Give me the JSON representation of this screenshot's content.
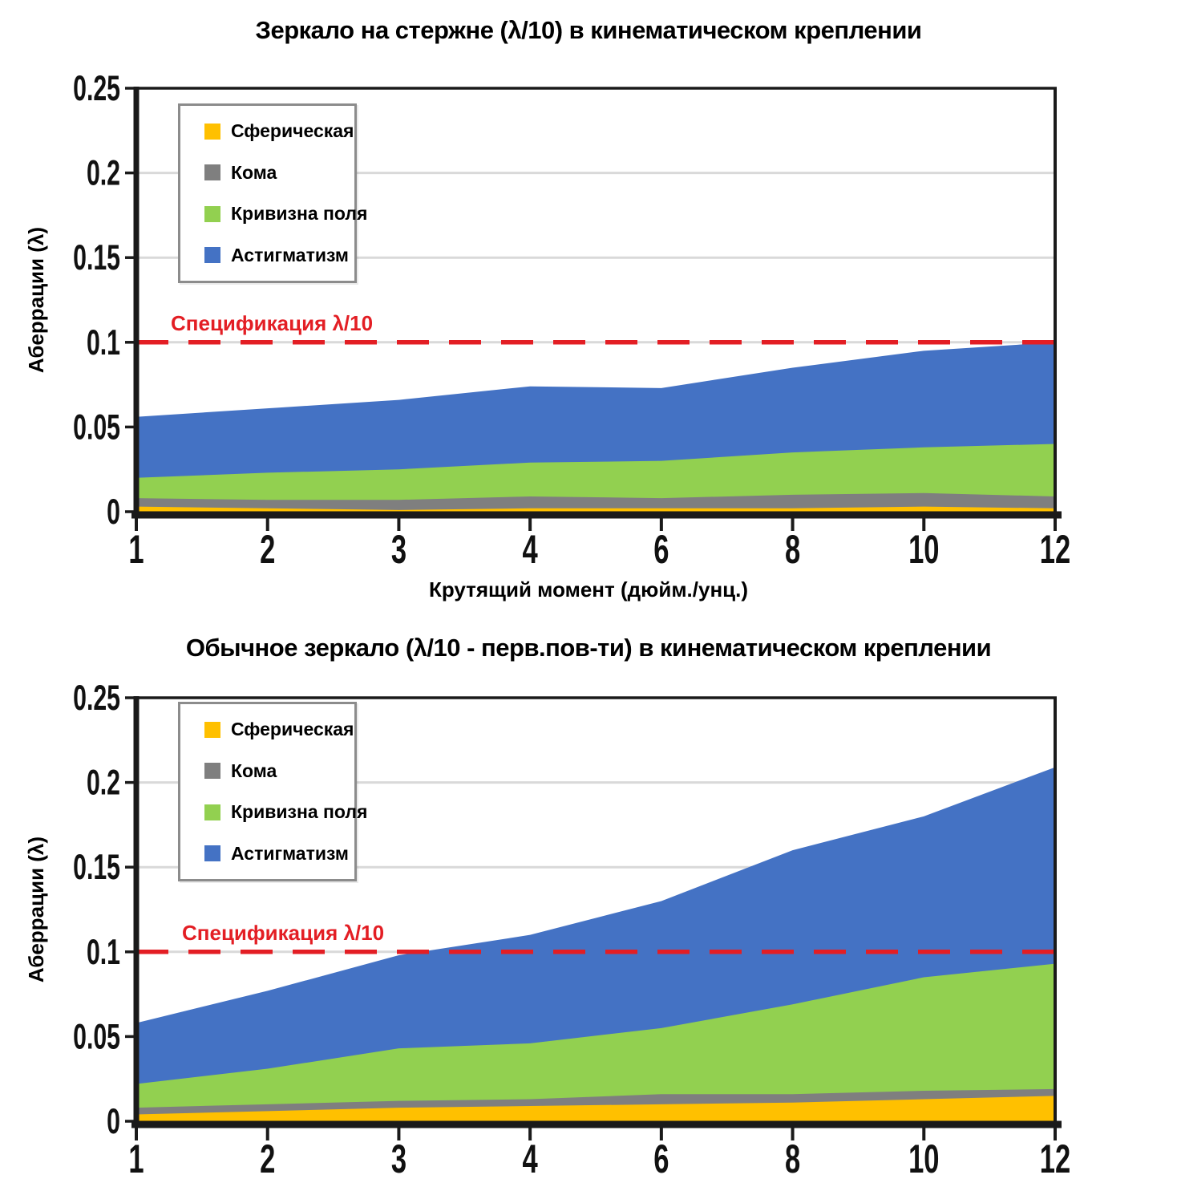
{
  "colors": {
    "background": "#FFFFFF",
    "gridline": "#D9D9D9",
    "axis": "#1A1A1A",
    "text": "#000000",
    "spec_line": "#E31E24"
  },
  "chart_data": [
    {
      "type": "area",
      "stacked": true,
      "title": "Зеркало на стержне (λ/10) в кинематическом креплении",
      "xlabel": "Крутящий момент (дюйм./унц.)",
      "ylabel": "Аберрации (λ)",
      "x": [
        1,
        2,
        3,
        4,
        6,
        8,
        10,
        12
      ],
      "x_tick_labels": [
        "1",
        "2",
        "3",
        "4",
        "6",
        "8",
        "10",
        "12"
      ],
      "y_ticks": [
        {
          "value": 0,
          "label": "0"
        },
        {
          "value": 0.05,
          "label": "0.05"
        },
        {
          "value": 0.1,
          "label": "0.1"
        },
        {
          "value": 0.15,
          "label": "0.15"
        },
        {
          "value": 0.2,
          "label": "0.2"
        },
        {
          "value": 0.25,
          "label": "0.25"
        }
      ],
      "ylim": [
        0,
        0.25
      ],
      "grid": true,
      "legend_position": "upper-left-inside",
      "series": [
        {
          "name": "Сферическая",
          "color": "#FFC000",
          "values": [
            0.003,
            0.002,
            0.001,
            0.002,
            0.002,
            0.002,
            0.003,
            0.002
          ]
        },
        {
          "name": "Кома",
          "color": "#7F7F7F",
          "values": [
            0.005,
            0.005,
            0.006,
            0.007,
            0.006,
            0.008,
            0.008,
            0.007
          ]
        },
        {
          "name": "Кривизна поля",
          "color": "#92D050",
          "values": [
            0.012,
            0.016,
            0.018,
            0.02,
            0.022,
            0.025,
            0.027,
            0.031
          ]
        },
        {
          "name": "Астигматизм",
          "color": "#4472C4",
          "values": [
            0.036,
            0.038,
            0.041,
            0.045,
            0.043,
            0.05,
            0.057,
            0.06
          ]
        }
      ],
      "annotation": {
        "label": "Спецификация λ/10",
        "value": 0.1,
        "color": "#E31E24",
        "style": "dashed"
      }
    },
    {
      "type": "area",
      "stacked": true,
      "title": "Обычное зеркало (λ/10 - перв.пов-ти) в кинематическом креплении",
      "xlabel": "",
      "ylabel": "Аберрации (λ)",
      "x": [
        1,
        2,
        3,
        4,
        6,
        8,
        10,
        12
      ],
      "x_tick_labels": [
        "1",
        "2",
        "3",
        "4",
        "6",
        "8",
        "10",
        "12"
      ],
      "y_ticks": [
        {
          "value": 0,
          "label": "0"
        },
        {
          "value": 0.05,
          "label": "0.05"
        },
        {
          "value": 0.1,
          "label": "0.1"
        },
        {
          "value": 0.15,
          "label": "0.15"
        },
        {
          "value": 0.2,
          "label": "0.2"
        },
        {
          "value": 0.25,
          "label": "0.25"
        }
      ],
      "ylim": [
        0,
        0.25
      ],
      "grid": true,
      "legend_position": "upper-left-inside",
      "series": [
        {
          "name": "Сферическая",
          "color": "#FFC000",
          "values": [
            0.004,
            0.006,
            0.008,
            0.009,
            0.01,
            0.011,
            0.013,
            0.015
          ]
        },
        {
          "name": "Кома",
          "color": "#7F7F7F",
          "values": [
            0.004,
            0.004,
            0.004,
            0.004,
            0.006,
            0.005,
            0.005,
            0.004
          ]
        },
        {
          "name": "Кривизна поля",
          "color": "#92D050",
          "values": [
            0.014,
            0.021,
            0.031,
            0.033,
            0.039,
            0.053,
            0.067,
            0.074
          ]
        },
        {
          "name": "Астигматизм",
          "color": "#4472C4",
          "values": [
            0.036,
            0.046,
            0.055,
            0.064,
            0.075,
            0.091,
            0.095,
            0.116
          ]
        }
      ],
      "annotation": {
        "label": "Спецификация λ/10",
        "value": 0.1,
        "color": "#E31E24",
        "style": "dashed"
      }
    }
  ]
}
